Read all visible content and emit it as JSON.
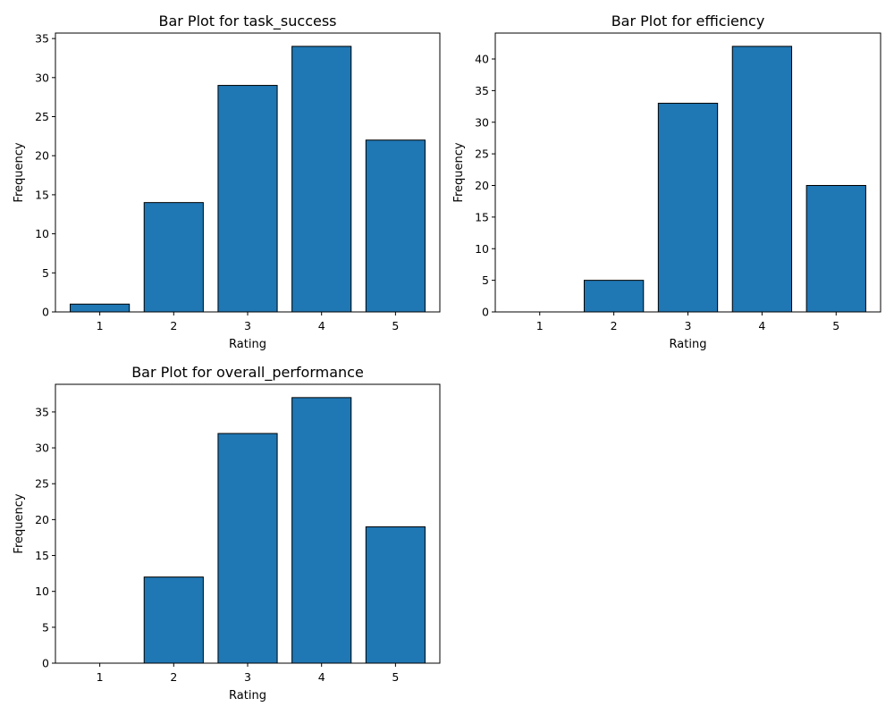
{
  "chart_data": [
    {
      "type": "bar",
      "title": "Bar Plot for task_success",
      "xlabel": "Rating",
      "ylabel": "Frequency",
      "categories": [
        "1",
        "2",
        "3",
        "4",
        "5"
      ],
      "values": [
        1,
        14,
        29,
        34,
        22
      ],
      "ylim": [
        0,
        35.7
      ],
      "yticks": [
        0,
        5,
        10,
        15,
        20,
        25,
        30,
        35
      ],
      "bar_color": "#1f77b4",
      "edge_color": "#000000",
      "grid": false
    },
    {
      "type": "bar",
      "title": "Bar Plot for efficiency",
      "xlabel": "Rating",
      "ylabel": "Frequency",
      "categories": [
        "1",
        "2",
        "3",
        "4",
        "5"
      ],
      "values": [
        0,
        5,
        33,
        42,
        20
      ],
      "ylim": [
        0,
        44.1
      ],
      "yticks": [
        0,
        5,
        10,
        15,
        20,
        25,
        30,
        35,
        40
      ],
      "bar_color": "#1f77b4",
      "edge_color": "#000000",
      "grid": false
    },
    {
      "type": "bar",
      "title": "Bar Plot for overall_performance",
      "xlabel": "Rating",
      "ylabel": "Frequency",
      "categories": [
        "1",
        "2",
        "3",
        "4",
        "5"
      ],
      "values": [
        0,
        12,
        32,
        37,
        19
      ],
      "ylim": [
        0,
        38.85
      ],
      "yticks": [
        0,
        5,
        10,
        15,
        20,
        25,
        30,
        35
      ],
      "bar_color": "#1f77b4",
      "edge_color": "#000000",
      "grid": false
    }
  ]
}
